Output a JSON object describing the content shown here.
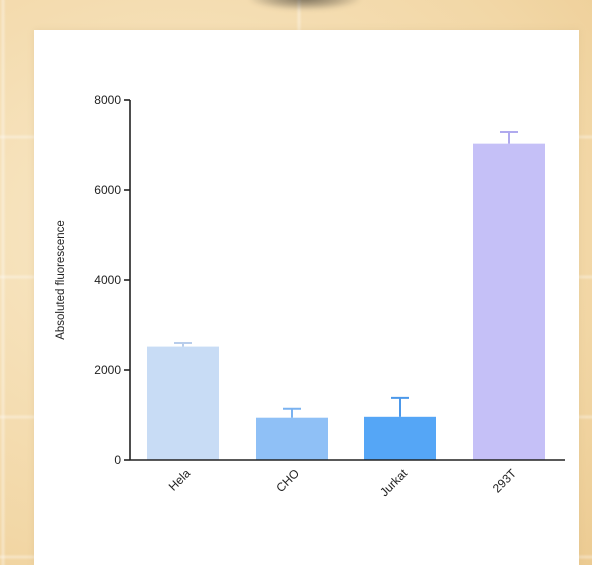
{
  "chart_data": {
    "type": "bar",
    "title": "",
    "xlabel": "",
    "ylabel": "Absoluted fluorescence",
    "ylim": [
      0,
      8000
    ],
    "yticks": [
      0,
      2000,
      4000,
      6000,
      8000
    ],
    "grid": false,
    "categories": [
      "Hela",
      "CHO",
      "Jurkat",
      "293T"
    ],
    "values": [
      2520,
      940,
      960,
      7030
    ],
    "errors": [
      80,
      200,
      420,
      260
    ],
    "colors": {
      "Hela": "#c8dcf5",
      "CHO": "#8fc0f6",
      "Jurkat": "#55a6f6",
      "293T": "#c5c0f7"
    },
    "error_colors": {
      "Hela": "#b8cdeb",
      "CHO": "#7ab2f0",
      "Jurkat": "#4c98ea",
      "293T": "#b0aaee"
    }
  }
}
